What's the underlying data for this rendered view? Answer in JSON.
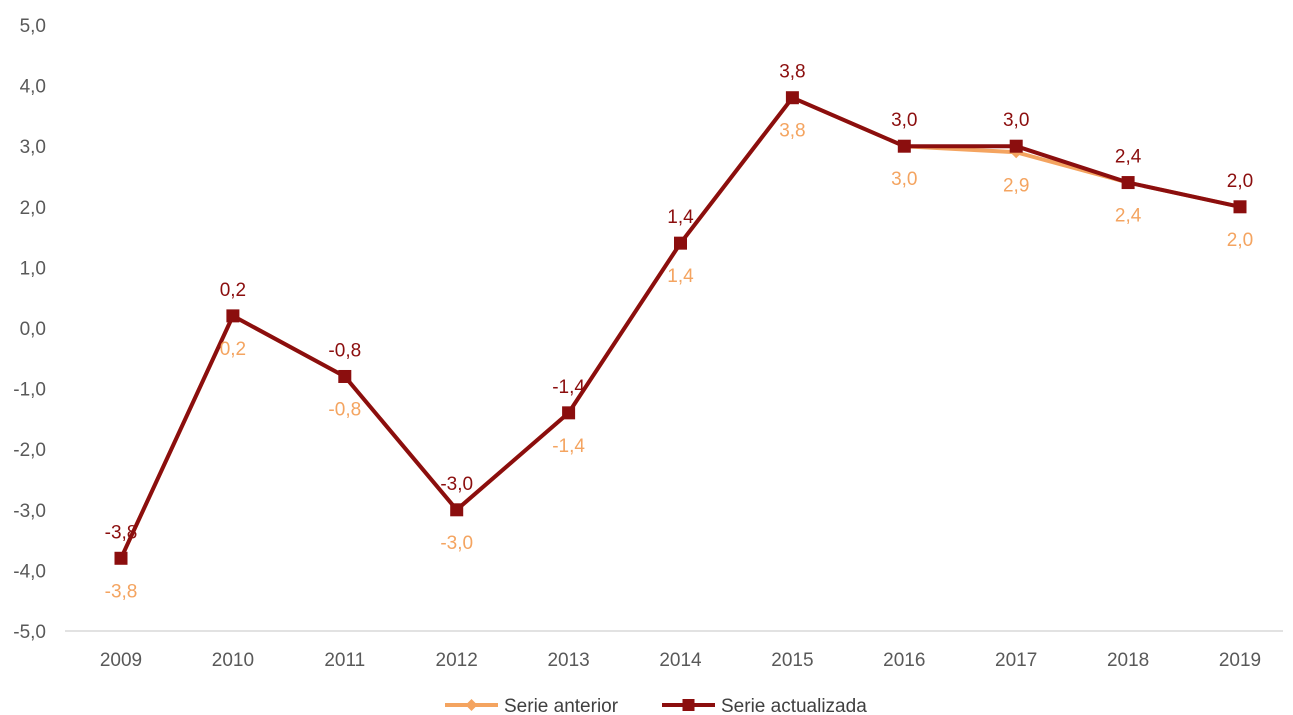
{
  "chart_data": {
    "type": "line",
    "title": "",
    "xlabel": "",
    "ylabel": "",
    "categories": [
      "2009",
      "2010",
      "2011",
      "2012",
      "2013",
      "2014",
      "2015",
      "2016",
      "2017",
      "2018",
      "2019"
    ],
    "ylim": [
      -5.0,
      5.0
    ],
    "ytick_step": 1.0,
    "ytick_labels": [
      "5,0",
      "4,0",
      "3,0",
      "2,0",
      "1,0",
      "0,0",
      "-1,0",
      "-2,0",
      "-3,0",
      "-4,0",
      "-5,0"
    ],
    "grid": false,
    "legend_position": "bottom",
    "series": [
      {
        "name": "Serie anterior",
        "color": "#F4A460",
        "marker": "diamond",
        "values": [
          -3.8,
          0.2,
          -0.8,
          -3.0,
          -1.4,
          1.4,
          3.8,
          3.0,
          2.9,
          2.4,
          2.0
        ],
        "labels": [
          "-3,8",
          "0,2",
          "-0,8",
          "-3,0",
          "-1,4",
          "1,4",
          "3,8",
          "3,0",
          "2,9",
          "2,4",
          "2,0"
        ],
        "label_position": "below"
      },
      {
        "name": "Serie actualizada",
        "color": "#8B0E0E",
        "marker": "square",
        "values": [
          -3.8,
          0.2,
          -0.8,
          -3.0,
          -1.4,
          1.4,
          3.8,
          3.0,
          3.0,
          2.4,
          2.0
        ],
        "labels": [
          "-3,8",
          "0,2",
          "-0,8",
          "-3,0",
          "-1,4",
          "1,4",
          "3,8",
          "3,0",
          "3,0",
          "2,4",
          "2,0"
        ],
        "label_position": "above"
      }
    ]
  }
}
